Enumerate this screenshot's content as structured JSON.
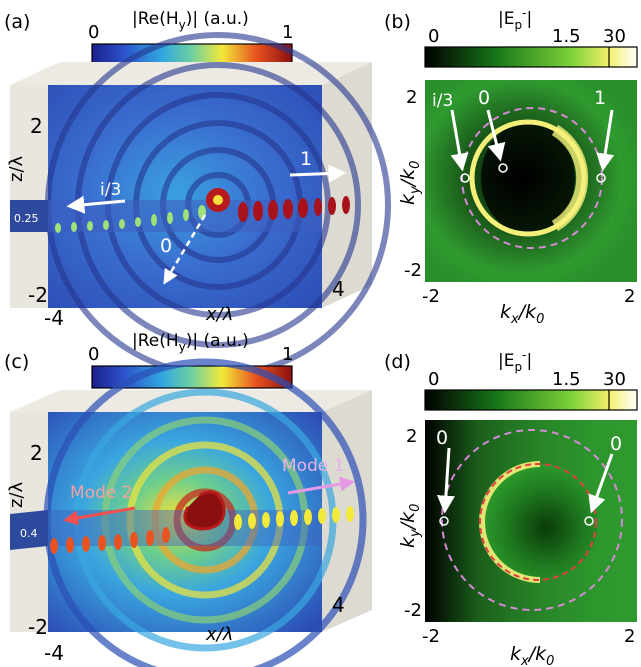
{
  "panels": {
    "a": {
      "label": "(a)",
      "cbar_title": "|Re(H",
      "cbar_sub": "y",
      "cbar_tail": ")| (a.u.)",
      "cbar_min": "0",
      "cbar_max": "1",
      "z_top": "2",
      "z_bottom": "-2",
      "z_axis_label": "z/λ",
      "x_left": "-4",
      "x_right": "4",
      "x_axis_label": "x/λ",
      "slab_thickness": "0.25",
      "arrow_right": "1",
      "arrow_left": "i/3",
      "arrow_down": "0"
    },
    "b": {
      "label": "(b)",
      "cbar_title": "|E",
      "cbar_sub": "p",
      "cbar_sup": "-",
      "cbar_tail": "|",
      "cbar_min": "0",
      "cbar_mid": "1.5",
      "cbar_max": "30",
      "y_axis_label": "k",
      "y_axis_sub": "y",
      "y_axis_tail": "/k",
      "y_axis_sub2": "0",
      "x_axis_label": "k",
      "x_axis_sub": "x",
      "x_axis_tail": "/k",
      "x_axis_sub2": "0",
      "y_top": "2",
      "y_bottom": "-2",
      "x_left": "-2",
      "x_right": "2",
      "pointer_left": "i/3",
      "pointer_center": "0",
      "pointer_right": "1"
    },
    "c": {
      "label": "(c)",
      "cbar_title": "|Re(H",
      "cbar_sub": "y",
      "cbar_tail": ")| (a.u.)",
      "cbar_min": "0",
      "cbar_max": "1",
      "z_top": "2",
      "z_bottom": "-2",
      "z_axis_label": "z/λ",
      "x_left": "-4",
      "x_right": "4",
      "x_axis_label": "x/λ",
      "slab_thickness": "0.4",
      "mode1": "Mode 1",
      "mode2": "Mode 2"
    },
    "d": {
      "label": "(d)",
      "cbar_title": "|E",
      "cbar_sub": "p",
      "cbar_sup": "-",
      "cbar_tail": "|",
      "cbar_min": "0",
      "cbar_mid": "1.5",
      "cbar_max": "30",
      "y_axis_label": "k",
      "y_axis_sub": "y",
      "y_axis_tail": "/k",
      "y_axis_sub2": "0",
      "x_axis_label": "k",
      "x_axis_sub": "x",
      "x_axis_tail": "/k",
      "x_axis_sub2": "0",
      "y_top": "2",
      "y_bottom": "-2",
      "x_left": "-2",
      "x_right": "2",
      "pointer_left": "0",
      "pointer_right": "0"
    }
  },
  "colors": {
    "jet_dark_blue": "#1a2a8a",
    "field_background": "#3a5fc0",
    "green_background": "#2e9e2e",
    "ring_yellow": "#f5f07a",
    "dashed_pink": "#d68ad6",
    "dashed_red": "#e04040",
    "mode1_pink": "#e69ae6",
    "mode2_red": "#f05050"
  }
}
